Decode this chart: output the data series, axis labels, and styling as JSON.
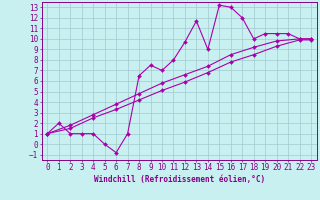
{
  "bg_color": "#c8f0f0",
  "grid_color": "#a0c8d0",
  "line_color": "#aa00aa",
  "marker_color": "#aa00aa",
  "xlabel": "Windchill (Refroidissement éolien,°C)",
  "xlim": [
    -0.5,
    23.5
  ],
  "ylim": [
    -1.5,
    13.5
  ],
  "xticks": [
    0,
    1,
    2,
    3,
    4,
    5,
    6,
    7,
    8,
    9,
    10,
    11,
    12,
    13,
    14,
    15,
    16,
    17,
    18,
    19,
    20,
    21,
    22,
    23
  ],
  "yticks": [
    -1,
    0,
    1,
    2,
    3,
    4,
    5,
    6,
    7,
    8,
    9,
    10,
    11,
    12,
    13
  ],
  "curve1_x": [
    0,
    1,
    2,
    3,
    4,
    5,
    6,
    7,
    8,
    9,
    10,
    11,
    12,
    13,
    14,
    15,
    16,
    17,
    18,
    19,
    20,
    21,
    22,
    23
  ],
  "curve1_y": [
    1.0,
    2.0,
    1.0,
    1.0,
    1.0,
    0.0,
    -0.8,
    1.0,
    6.5,
    7.5,
    7.0,
    8.0,
    9.7,
    11.7,
    9.0,
    13.2,
    13.0,
    12.0,
    10.0,
    10.5,
    10.5,
    10.5,
    10.0,
    10.0
  ],
  "curve2_x": [
    0,
    2,
    4,
    6,
    8,
    10,
    12,
    14,
    16,
    18,
    20,
    22,
    23
  ],
  "curve2_y": [
    1.0,
    1.8,
    2.8,
    3.8,
    4.8,
    5.8,
    6.6,
    7.4,
    8.5,
    9.2,
    9.8,
    10.0,
    10.0
  ],
  "curve3_x": [
    0,
    2,
    4,
    6,
    8,
    10,
    12,
    14,
    16,
    18,
    20,
    22,
    23
  ],
  "curve3_y": [
    1.0,
    1.5,
    2.5,
    3.3,
    4.2,
    5.1,
    5.9,
    6.8,
    7.8,
    8.5,
    9.3,
    9.9,
    9.9
  ],
  "axis_color": "#880088",
  "font_size": 5.5,
  "xlabel_fontsize": 5.5
}
